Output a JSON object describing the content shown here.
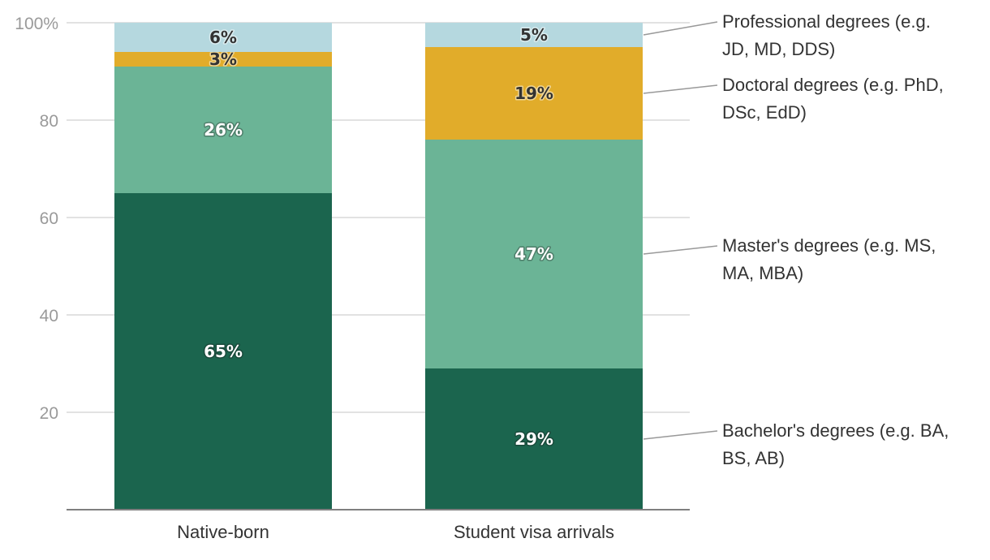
{
  "chart_data": {
    "type": "bar",
    "stacked": true,
    "title": "",
    "xlabel": "",
    "ylabel": "",
    "ylim": [
      0,
      100
    ],
    "yticks": [
      {
        "value": 20,
        "label": "20"
      },
      {
        "value": 40,
        "label": "40"
      },
      {
        "value": 60,
        "label": "60"
      },
      {
        "value": 80,
        "label": "80"
      },
      {
        "value": 100,
        "label": "100%"
      }
    ],
    "grid": true,
    "legend_position": "right",
    "categories": [
      "Native-born",
      "Student visa arrivals"
    ],
    "series": [
      {
        "name": "Bachelor's degrees (e.g. BA, BS, AB)",
        "legend_lines": [
          "Bachelor's degrees (e.g. BA,",
          "BS, AB)"
        ],
        "color": "#1b654e",
        "values": [
          65,
          29
        ],
        "labels": [
          "65%",
          "29%"
        ]
      },
      {
        "name": "Master's degrees (e.g. MS, MA, MBA)",
        "legend_lines": [
          "Master's degrees (e.g. MS,",
          "MA, MBA)"
        ],
        "color": "#6bb496",
        "values": [
          26,
          47
        ],
        "labels": [
          "26%",
          "47%"
        ]
      },
      {
        "name": "Doctoral degrees (e.g. PhD, DSc, EdD)",
        "legend_lines": [
          "Doctoral degrees (e.g. PhD,",
          "DSc, EdD)"
        ],
        "color": "#e1ac2a",
        "values": [
          3,
          19
        ],
        "labels": [
          "3%",
          "19%"
        ]
      },
      {
        "name": "Professional degrees (e.g. JD, MD, DDS)",
        "legend_lines": [
          "Professional degrees (e.g.",
          "JD, MD, DDS)"
        ],
        "color": "#b5d8df",
        "values": [
          6,
          5
        ],
        "labels": [
          "6%",
          "5%"
        ]
      }
    ]
  }
}
